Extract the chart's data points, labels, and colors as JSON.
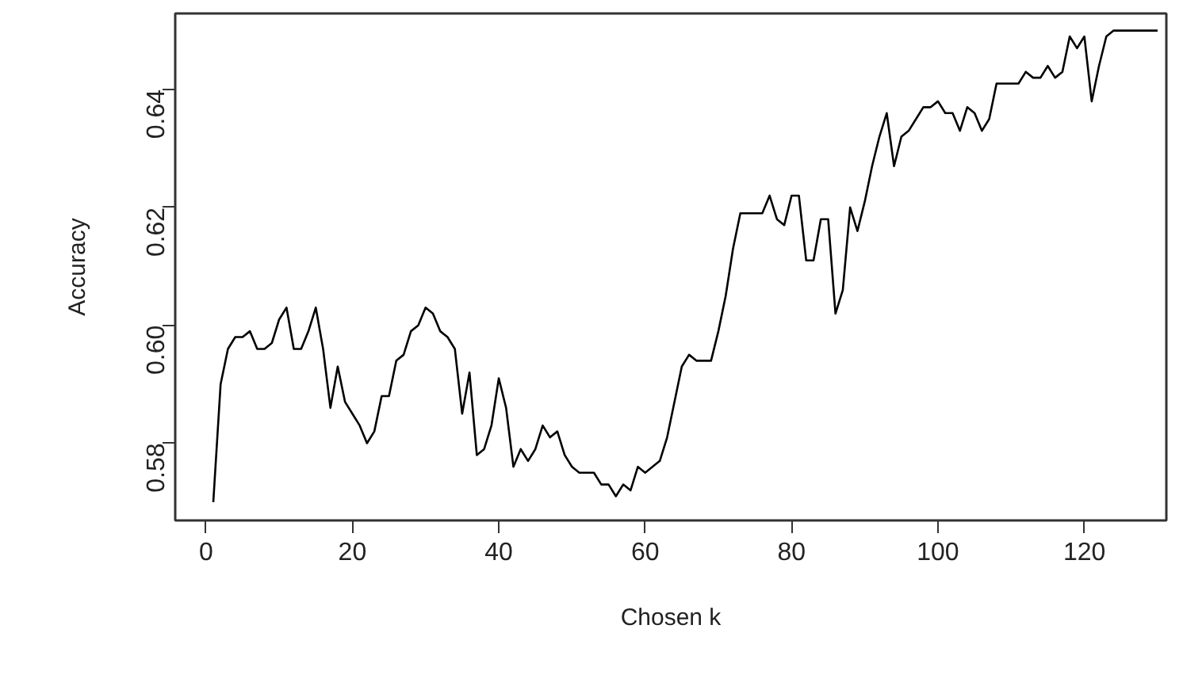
{
  "chart_data": {
    "type": "line",
    "xlabel": "Chosen k",
    "ylabel": "Accuracy",
    "x": [
      1,
      2,
      3,
      4,
      5,
      6,
      7,
      8,
      9,
      10,
      11,
      12,
      13,
      14,
      15,
      16,
      17,
      18,
      19,
      20,
      21,
      22,
      23,
      24,
      25,
      26,
      27,
      28,
      29,
      30,
      31,
      32,
      33,
      34,
      35,
      36,
      37,
      38,
      39,
      40,
      41,
      42,
      43,
      44,
      45,
      46,
      47,
      48,
      49,
      50,
      51,
      52,
      53,
      54,
      55,
      56,
      57,
      58,
      59,
      60,
      61,
      62,
      63,
      64,
      65,
      66,
      67,
      68,
      69,
      70,
      71,
      72,
      73,
      74,
      75,
      76,
      77,
      78,
      79,
      80,
      81,
      82,
      83,
      84,
      85,
      86,
      87,
      88,
      89,
      90,
      91,
      92,
      93,
      94,
      95,
      96,
      97,
      98,
      99,
      100,
      101,
      102,
      103,
      104,
      105,
      106,
      107,
      108,
      109,
      110,
      111,
      112,
      113,
      114,
      115,
      116,
      117,
      118,
      119,
      120,
      121,
      122,
      123,
      124,
      125,
      126,
      127,
      128,
      129,
      130
    ],
    "series": [
      {
        "color": "#000000",
        "values": [
          0.57,
          0.59,
          0.596,
          0.598,
          0.598,
          0.599,
          0.596,
          0.596,
          0.597,
          0.601,
          0.603,
          0.596,
          0.596,
          0.599,
          0.603,
          0.596,
          0.586,
          0.593,
          0.587,
          0.585,
          0.583,
          0.58,
          0.582,
          0.588,
          0.588,
          0.594,
          0.595,
          0.599,
          0.6,
          0.603,
          0.602,
          0.599,
          0.598,
          0.596,
          0.585,
          0.592,
          0.578,
          0.579,
          0.583,
          0.591,
          0.586,
          0.576,
          0.579,
          0.577,
          0.579,
          0.583,
          0.581,
          0.582,
          0.578,
          0.576,
          0.575,
          0.575,
          0.575,
          0.573,
          0.573,
          0.571,
          0.573,
          0.572,
          0.576,
          0.575,
          0.576,
          0.577,
          0.581,
          0.587,
          0.593,
          0.595,
          0.594,
          0.594,
          0.594,
          0.599,
          0.605,
          0.613,
          0.619,
          0.619,
          0.619,
          0.619,
          0.622,
          0.618,
          0.617,
          0.622,
          0.622,
          0.611,
          0.611,
          0.618,
          0.618,
          0.602,
          0.606,
          0.62,
          0.616,
          0.621,
          0.627,
          0.632,
          0.636,
          0.627,
          0.632,
          0.633,
          0.635,
          0.637,
          0.637,
          0.638,
          0.636,
          0.636,
          0.633,
          0.637,
          0.636,
          0.633,
          0.635,
          0.641,
          0.641,
          0.641,
          0.641,
          0.643,
          0.642,
          0.642,
          0.644,
          0.642,
          0.643,
          0.649,
          0.647,
          0.649,
          0.638,
          0.644,
          0.649,
          0.65,
          0.65,
          0.65,
          0.65,
          0.65,
          0.65,
          0.65
        ]
      }
    ],
    "xlim": [
      -4.2,
      131.2
    ],
    "ylim": [
      0.5669,
      0.6529
    ],
    "xticks": [
      0,
      20,
      40,
      60,
      80,
      100,
      120
    ],
    "yticks": [
      {
        "value": 0.58,
        "label": "0.58"
      },
      {
        "value": 0.6,
        "label": "0.60"
      },
      {
        "value": 0.62,
        "label": "0.62"
      },
      {
        "value": 0.64,
        "label": "0.64"
      }
    ],
    "grid": false,
    "marker": "none",
    "line_style": "solid"
  }
}
